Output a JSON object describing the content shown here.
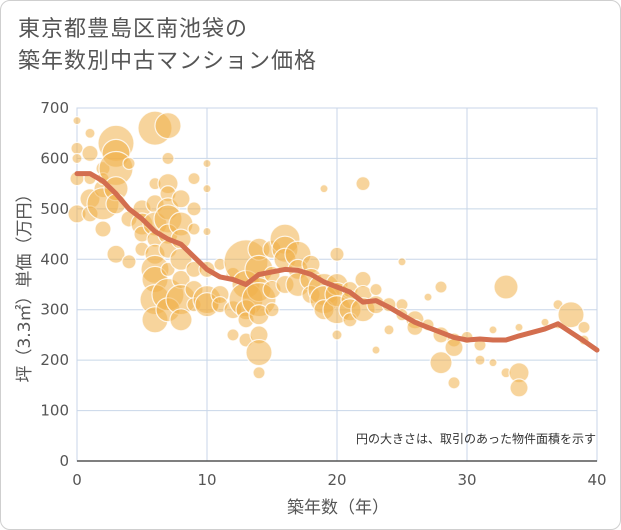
{
  "title_line1": "東京都豊島区南池袋の",
  "title_line2": "築年数別中古マンション価格",
  "note": "円の大きさは、取引のあった物件面積を示す",
  "colors": {
    "bubble": "#f0b04a",
    "line": "#d36e4f",
    "grid": "#c8d6e8"
  },
  "chart_data": {
    "type": "scatter",
    "xlabel": "築年数（年）",
    "ylabel": "坪（3.3㎡）単価（万円）",
    "xlim": [
      0,
      40
    ],
    "ylim": [
      0,
      700
    ],
    "xticks": [
      0,
      10,
      20,
      30,
      40
    ],
    "yticks": [
      0,
      100,
      200,
      300,
      400,
      500,
      600,
      700
    ],
    "scatter": [
      {
        "x": 0,
        "y": 675,
        "s": 4
      },
      {
        "x": 0,
        "y": 620,
        "s": 6
      },
      {
        "x": 0,
        "y": 600,
        "s": 5
      },
      {
        "x": 0,
        "y": 560,
        "s": 7
      },
      {
        "x": 0,
        "y": 490,
        "s": 9
      },
      {
        "x": 1,
        "y": 650,
        "s": 5
      },
      {
        "x": 1,
        "y": 610,
        "s": 8
      },
      {
        "x": 1,
        "y": 560,
        "s": 6
      },
      {
        "x": 1,
        "y": 520,
        "s": 10
      },
      {
        "x": 1,
        "y": 490,
        "s": 8
      },
      {
        "x": 2,
        "y": 580,
        "s": 7
      },
      {
        "x": 2,
        "y": 540,
        "s": 9
      },
      {
        "x": 2,
        "y": 510,
        "s": 16
      },
      {
        "x": 2,
        "y": 460,
        "s": 8
      },
      {
        "x": 2,
        "y": 560,
        "s": 6
      },
      {
        "x": 3,
        "y": 630,
        "s": 18
      },
      {
        "x": 3,
        "y": 610,
        "s": 14
      },
      {
        "x": 3,
        "y": 580,
        "s": 17
      },
      {
        "x": 3,
        "y": 540,
        "s": 12
      },
      {
        "x": 3,
        "y": 510,
        "s": 10
      },
      {
        "x": 3,
        "y": 410,
        "s": 9
      },
      {
        "x": 4,
        "y": 590,
        "s": 6
      },
      {
        "x": 4,
        "y": 480,
        "s": 8
      },
      {
        "x": 4,
        "y": 395,
        "s": 7
      },
      {
        "x": 5,
        "y": 500,
        "s": 9
      },
      {
        "x": 5,
        "y": 470,
        "s": 11
      },
      {
        "x": 5,
        "y": 450,
        "s": 8
      },
      {
        "x": 5,
        "y": 420,
        "s": 7
      },
      {
        "x": 6,
        "y": 660,
        "s": 17
      },
      {
        "x": 6,
        "y": 550,
        "s": 6
      },
      {
        "x": 6,
        "y": 510,
        "s": 9
      },
      {
        "x": 6,
        "y": 470,
        "s": 12
      },
      {
        "x": 6,
        "y": 440,
        "s": 8
      },
      {
        "x": 6,
        "y": 410,
        "s": 10
      },
      {
        "x": 6,
        "y": 380,
        "s": 14
      },
      {
        "x": 6,
        "y": 360,
        "s": 13
      },
      {
        "x": 6,
        "y": 320,
        "s": 15
      },
      {
        "x": 6,
        "y": 280,
        "s": 13
      },
      {
        "x": 7,
        "y": 665,
        "s": 13
      },
      {
        "x": 7,
        "y": 600,
        "s": 6
      },
      {
        "x": 7,
        "y": 550,
        "s": 10
      },
      {
        "x": 7,
        "y": 530,
        "s": 8
      },
      {
        "x": 7,
        "y": 500,
        "s": 11
      },
      {
        "x": 7,
        "y": 480,
        "s": 14
      },
      {
        "x": 7,
        "y": 450,
        "s": 10
      },
      {
        "x": 7,
        "y": 420,
        "s": 9
      },
      {
        "x": 7,
        "y": 380,
        "s": 7
      },
      {
        "x": 7,
        "y": 330,
        "s": 16
      },
      {
        "x": 7,
        "y": 300,
        "s": 12
      },
      {
        "x": 8,
        "y": 520,
        "s": 9
      },
      {
        "x": 8,
        "y": 470,
        "s": 12
      },
      {
        "x": 8,
        "y": 440,
        "s": 10
      },
      {
        "x": 8,
        "y": 400,
        "s": 11
      },
      {
        "x": 8,
        "y": 360,
        "s": 9
      },
      {
        "x": 8,
        "y": 320,
        "s": 15
      },
      {
        "x": 8,
        "y": 280,
        "s": 11
      },
      {
        "x": 9,
        "y": 560,
        "s": 6
      },
      {
        "x": 9,
        "y": 500,
        "s": 7
      },
      {
        "x": 9,
        "y": 460,
        "s": 6
      },
      {
        "x": 9,
        "y": 380,
        "s": 8
      },
      {
        "x": 9,
        "y": 340,
        "s": 9
      },
      {
        "x": 9,
        "y": 310,
        "s": 7
      },
      {
        "x": 10,
        "y": 590,
        "s": 4
      },
      {
        "x": 10,
        "y": 540,
        "s": 4
      },
      {
        "x": 10,
        "y": 455,
        "s": 4
      },
      {
        "x": 10,
        "y": 380,
        "s": 8
      },
      {
        "x": 10,
        "y": 320,
        "s": 14
      },
      {
        "x": 10,
        "y": 310,
        "s": 12
      },
      {
        "x": 11,
        "y": 390,
        "s": 6
      },
      {
        "x": 11,
        "y": 330,
        "s": 9
      },
      {
        "x": 11,
        "y": 310,
        "s": 8
      },
      {
        "x": 12,
        "y": 370,
        "s": 7
      },
      {
        "x": 12,
        "y": 300,
        "s": 9
      },
      {
        "x": 12,
        "y": 250,
        "s": 6
      },
      {
        "x": 13,
        "y": 395,
        "s": 22
      },
      {
        "x": 13,
        "y": 350,
        "s": 14
      },
      {
        "x": 13,
        "y": 320,
        "s": 17
      },
      {
        "x": 13,
        "y": 300,
        "s": 10
      },
      {
        "x": 13,
        "y": 280,
        "s": 8
      },
      {
        "x": 13,
        "y": 240,
        "s": 7
      },
      {
        "x": 14,
        "y": 420,
        "s": 11
      },
      {
        "x": 14,
        "y": 380,
        "s": 14
      },
      {
        "x": 14,
        "y": 340,
        "s": 12
      },
      {
        "x": 14,
        "y": 320,
        "s": 17
      },
      {
        "x": 14,
        "y": 290,
        "s": 10
      },
      {
        "x": 14,
        "y": 250,
        "s": 9
      },
      {
        "x": 14,
        "y": 215,
        "s": 13
      },
      {
        "x": 14,
        "y": 175,
        "s": 6
      },
      {
        "x": 15,
        "y": 420,
        "s": 9
      },
      {
        "x": 15,
        "y": 370,
        "s": 8
      },
      {
        "x": 15,
        "y": 340,
        "s": 9
      },
      {
        "x": 15,
        "y": 300,
        "s": 7
      },
      {
        "x": 16,
        "y": 440,
        "s": 15
      },
      {
        "x": 16,
        "y": 420,
        "s": 13
      },
      {
        "x": 16,
        "y": 400,
        "s": 11
      },
      {
        "x": 16,
        "y": 350,
        "s": 9
      },
      {
        "x": 17,
        "y": 410,
        "s": 13
      },
      {
        "x": 17,
        "y": 380,
        "s": 10
      },
      {
        "x": 17,
        "y": 350,
        "s": 12
      },
      {
        "x": 18,
        "y": 390,
        "s": 9
      },
      {
        "x": 18,
        "y": 360,
        "s": 11
      },
      {
        "x": 18,
        "y": 330,
        "s": 9
      },
      {
        "x": 19,
        "y": 540,
        "s": 4
      },
      {
        "x": 19,
        "y": 340,
        "s": 16
      },
      {
        "x": 19,
        "y": 320,
        "s": 14
      },
      {
        "x": 19,
        "y": 300,
        "s": 10
      },
      {
        "x": 20,
        "y": 410,
        "s": 7
      },
      {
        "x": 20,
        "y": 350,
        "s": 11
      },
      {
        "x": 20,
        "y": 330,
        "s": 12
      },
      {
        "x": 20,
        "y": 300,
        "s": 14
      },
      {
        "x": 20,
        "y": 250,
        "s": 5
      },
      {
        "x": 21,
        "y": 340,
        "s": 8
      },
      {
        "x": 21,
        "y": 320,
        "s": 9
      },
      {
        "x": 21,
        "y": 300,
        "s": 11
      },
      {
        "x": 21,
        "y": 280,
        "s": 7
      },
      {
        "x": 22,
        "y": 550,
        "s": 7
      },
      {
        "x": 22,
        "y": 360,
        "s": 8
      },
      {
        "x": 22,
        "y": 330,
        "s": 9
      },
      {
        "x": 22,
        "y": 300,
        "s": 12
      },
      {
        "x": 23,
        "y": 340,
        "s": 6
      },
      {
        "x": 23,
        "y": 310,
        "s": 9
      },
      {
        "x": 23,
        "y": 220,
        "s": 4
      },
      {
        "x": 24,
        "y": 310,
        "s": 7
      },
      {
        "x": 24,
        "y": 260,
        "s": 5
      },
      {
        "x": 25,
        "y": 395,
        "s": 4
      },
      {
        "x": 25,
        "y": 310,
        "s": 6
      },
      {
        "x": 25,
        "y": 290,
        "s": 6
      },
      {
        "x": 26,
        "y": 280,
        "s": 9
      },
      {
        "x": 26,
        "y": 265,
        "s": 8
      },
      {
        "x": 27,
        "y": 325,
        "s": 4
      },
      {
        "x": 27,
        "y": 270,
        "s": 6
      },
      {
        "x": 28,
        "y": 345,
        "s": 6
      },
      {
        "x": 28,
        "y": 250,
        "s": 8
      },
      {
        "x": 28,
        "y": 195,
        "s": 11
      },
      {
        "x": 29,
        "y": 240,
        "s": 7
      },
      {
        "x": 29,
        "y": 225,
        "s": 9
      },
      {
        "x": 29,
        "y": 155,
        "s": 6
      },
      {
        "x": 30,
        "y": 245,
        "s": 6
      },
      {
        "x": 31,
        "y": 230,
        "s": 6
      },
      {
        "x": 31,
        "y": 200,
        "s": 5
      },
      {
        "x": 32,
        "y": 260,
        "s": 4
      },
      {
        "x": 32,
        "y": 195,
        "s": 4
      },
      {
        "x": 33,
        "y": 345,
        "s": 12
      },
      {
        "x": 33,
        "y": 175,
        "s": 5
      },
      {
        "x": 34,
        "y": 265,
        "s": 4
      },
      {
        "x": 34,
        "y": 175,
        "s": 10
      },
      {
        "x": 34,
        "y": 145,
        "s": 9
      },
      {
        "x": 36,
        "y": 275,
        "s": 4
      },
      {
        "x": 37,
        "y": 310,
        "s": 5
      },
      {
        "x": 37,
        "y": 270,
        "s": 4
      },
      {
        "x": 38,
        "y": 290,
        "s": 13
      },
      {
        "x": 39,
        "y": 265,
        "s": 6
      },
      {
        "x": 39,
        "y": 240,
        "s": 5
      }
    ],
    "line": {
      "x": [
        0,
        1,
        2,
        3,
        4,
        5,
        6,
        7,
        8,
        9,
        10,
        11,
        12,
        13,
        14,
        15,
        16,
        17,
        18,
        19,
        20,
        21,
        22,
        23,
        24,
        25,
        26,
        27,
        28,
        29,
        30,
        31,
        32,
        33,
        34,
        35,
        36,
        37,
        38,
        39,
        40
      ],
      "y": [
        570,
        570,
        555,
        530,
        500,
        480,
        455,
        440,
        430,
        405,
        380,
        365,
        360,
        350,
        370,
        375,
        380,
        378,
        370,
        355,
        345,
        335,
        315,
        318,
        305,
        290,
        275,
        265,
        255,
        245,
        240,
        242,
        240,
        240,
        248,
        255,
        262,
        272,
        255,
        238,
        220
      ]
    }
  }
}
